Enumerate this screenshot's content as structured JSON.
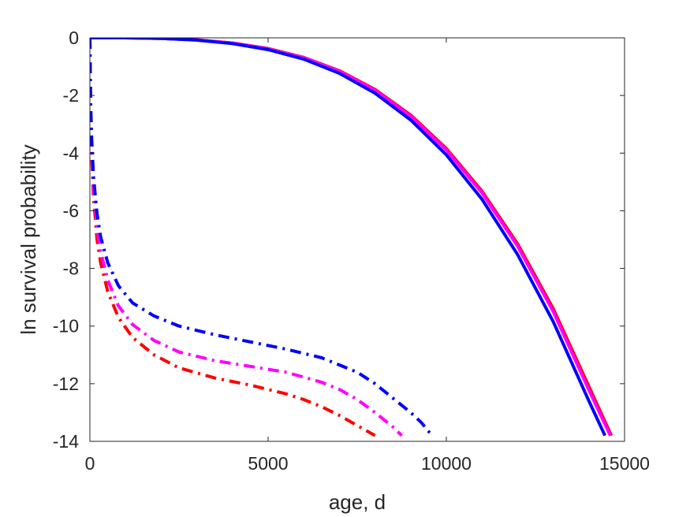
{
  "chart_data": {
    "type": "line",
    "title": "",
    "xlabel": "age, d",
    "ylabel": "ln survival probability",
    "xlim": [
      0,
      15000
    ],
    "ylim": [
      -14,
      0
    ],
    "xticks": [
      0,
      5000,
      10000,
      15000
    ],
    "xtick_labels": [
      "0",
      "5000",
      "10000",
      "15000"
    ],
    "yticks": [
      0,
      -2,
      -4,
      -6,
      -8,
      -10,
      -12,
      -14
    ],
    "ytick_labels": [
      "0",
      "-2",
      "-4",
      "-6",
      "-8",
      "-10",
      "-12",
      "-14"
    ],
    "grid": false,
    "legend": "none",
    "series": [
      {
        "color": "#ff0000",
        "style": "solid",
        "x": [
          0,
          1000,
          2000,
          3000,
          4000,
          5000,
          6000,
          7000,
          8000,
          9000,
          10000,
          11000,
          12000,
          13000,
          14000,
          14630
        ],
        "y": [
          0,
          0,
          -0.02,
          -0.07,
          -0.18,
          -0.37,
          -0.68,
          -1.14,
          -1.79,
          -2.68,
          -3.84,
          -5.32,
          -7.15,
          -9.4,
          -12.1,
          -13.8
        ]
      },
      {
        "color": "#ff00ff",
        "style": "solid",
        "x": [
          0,
          1000,
          2000,
          3000,
          4000,
          5000,
          6000,
          7000,
          8000,
          9000,
          10000,
          11000,
          12000,
          13000,
          14000,
          14600
        ],
        "y": [
          0,
          0,
          -0.02,
          -0.07,
          -0.18,
          -0.38,
          -0.69,
          -1.16,
          -1.82,
          -2.72,
          -3.89,
          -5.38,
          -7.23,
          -9.5,
          -12.22,
          -13.8
        ]
      },
      {
        "color": "#0000ff",
        "style": "solid",
        "x": [
          0,
          1000,
          2000,
          3000,
          4000,
          5000,
          6000,
          7000,
          8000,
          9000,
          10000,
          11000,
          12000,
          13000,
          14000,
          14450
        ],
        "y": [
          0,
          0,
          -0.02,
          -0.08,
          -0.2,
          -0.41,
          -0.74,
          -1.23,
          -1.92,
          -2.85,
          -4.06,
          -5.6,
          -7.52,
          -9.85,
          -12.6,
          -13.8
        ]
      },
      {
        "color": "#ff0000",
        "style": "dashdot",
        "x": [
          0,
          20,
          50,
          100,
          200,
          300,
          500,
          800,
          1200,
          1800,
          2500,
          3500,
          4500,
          5500,
          6000,
          6500,
          7000,
          7500,
          8000
        ],
        "y": [
          0,
          -2.5,
          -4.1,
          -5.5,
          -7.0,
          -7.8,
          -8.8,
          -9.7,
          -10.4,
          -11.0,
          -11.45,
          -11.8,
          -12.05,
          -12.35,
          -12.55,
          -12.8,
          -13.1,
          -13.45,
          -13.8
        ]
      },
      {
        "color": "#ff00ff",
        "style": "dashdot",
        "x": [
          0,
          20,
          50,
          100,
          200,
          300,
          500,
          800,
          1200,
          1800,
          2500,
          3500,
          4500,
          5500,
          6500,
          7000,
          7500,
          8000,
          8500,
          8750
        ],
        "y": [
          0,
          -2.4,
          -3.9,
          -5.2,
          -6.6,
          -7.4,
          -8.4,
          -9.3,
          -9.95,
          -10.5,
          -10.9,
          -11.2,
          -11.4,
          -11.6,
          -11.95,
          -12.2,
          -12.55,
          -13.0,
          -13.5,
          -13.8
        ]
      },
      {
        "color": "#0000ff",
        "style": "dashdot",
        "x": [
          0,
          20,
          50,
          100,
          200,
          300,
          500,
          800,
          1200,
          1800,
          2500,
          3500,
          4500,
          5500,
          6000,
          6500,
          7500,
          8000,
          8500,
          9000,
          9300,
          9600
        ],
        "y": [
          0,
          -2.2,
          -3.5,
          -4.8,
          -6.1,
          -6.9,
          -7.8,
          -8.6,
          -9.2,
          -9.65,
          -10.0,
          -10.3,
          -10.55,
          -10.8,
          -10.95,
          -11.1,
          -11.6,
          -12.0,
          -12.5,
          -13.0,
          -13.35,
          -13.8
        ]
      }
    ]
  }
}
